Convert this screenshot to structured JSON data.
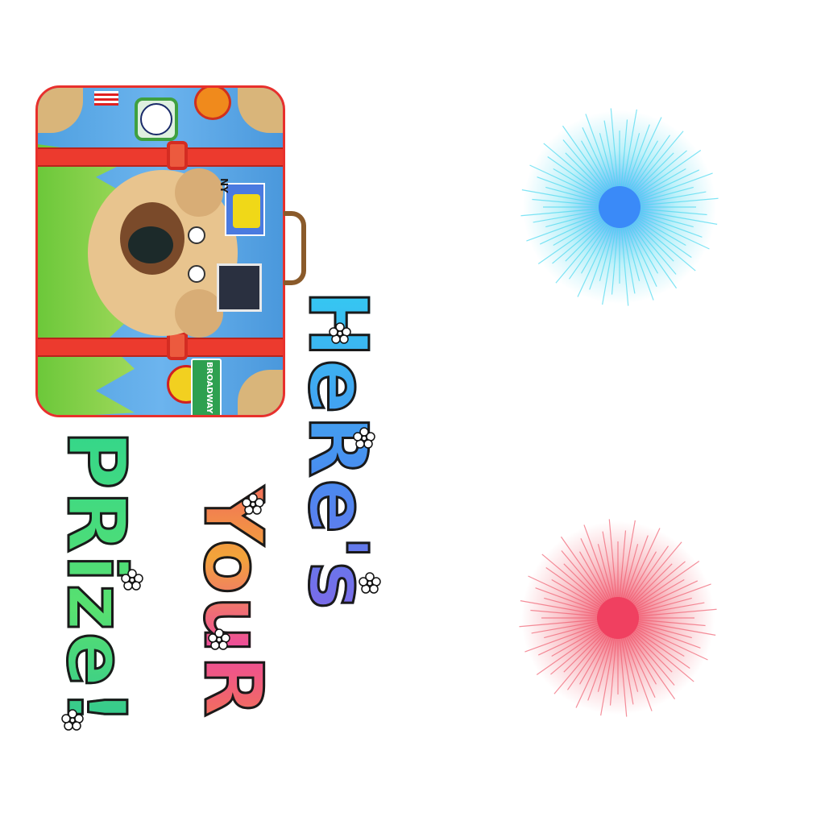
{
  "title": {
    "line1": "HeRe's",
    "line2": "YouR",
    "line3": "PRize!"
  },
  "suitcase_stickers": {
    "broadway": "BROADWAY",
    "ny": "NY"
  },
  "colors": {
    "burst_top": "#3a8af8",
    "burst_top_rays": "#4ad8f0",
    "burst_bottom": "#f04060",
    "burst_bottom_rays": "#f06070",
    "suitcase_trim": "#e8302c"
  }
}
